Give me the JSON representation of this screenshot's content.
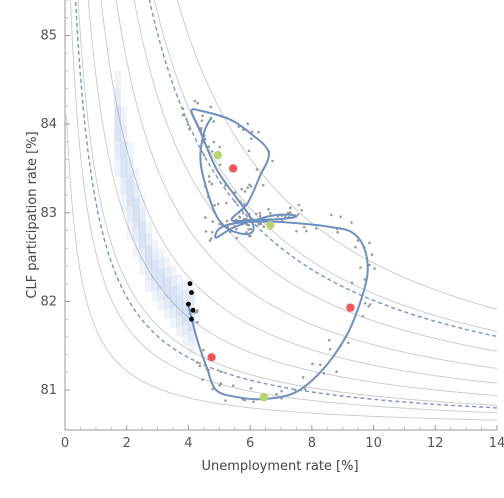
{
  "chart_data": {
    "type": "scatter",
    "title": "",
    "xlabel": "Unemployment rate [%]",
    "ylabel": "CLF participation rate [%]",
    "xlim": [
      0,
      14
    ],
    "ylim": [
      80.55,
      85.4
    ],
    "xticks": [
      0,
      2,
      4,
      6,
      8,
      10,
      12,
      14
    ],
    "yticks": [
      81,
      82,
      83,
      84,
      85
    ],
    "grid": false,
    "background_curves_k": [
      0.4,
      0.7,
      1.0,
      1.4,
      1.9,
      2.5,
      3.2,
      4.0,
      4.9
    ],
    "dashed_curve_k": [
      0.9,
      3.8
    ],
    "dashed_curve_color": "#7a93bf",
    "trajectory": {
      "color": "#6e8fbf",
      "x": [
        4.0,
        4.3,
        4.6,
        4.9,
        5.6,
        6.5,
        7.5,
        8.4,
        9.1,
        9.5,
        9.8,
        9.7,
        9.3,
        8.6,
        7.6,
        6.6,
        5.5,
        5.0,
        4.9,
        5.5,
        6.6,
        7.2,
        7.5,
        7.0,
        6.1,
        5.4,
        5.9,
        6.3,
        6.6,
        6.0,
        5.3,
        4.4,
        4.1,
        4.35,
        4.9,
        5.6,
        6.0,
        6.1,
        5.8,
        5.2,
        4.8,
        4.4,
        4.5,
        4.75
      ],
      "y": [
        81.95,
        81.55,
        81.25,
        81.0,
        80.92,
        80.9,
        80.98,
        81.25,
        81.6,
        81.92,
        82.3,
        82.6,
        82.78,
        82.84,
        82.88,
        82.9,
        82.88,
        82.82,
        82.72,
        82.84,
        82.96,
        82.98,
        82.96,
        82.93,
        82.92,
        82.92,
        83.1,
        83.4,
        83.68,
        83.9,
        84.06,
        84.15,
        84.15,
        83.95,
        83.5,
        83.15,
        82.95,
        82.8,
        82.76,
        82.84,
        83.05,
        83.55,
        83.9,
        84.08
      ]
    },
    "black_points": {
      "x": [
        4.05,
        4.1,
        4.0,
        4.15,
        4.1
      ],
      "y": [
        82.2,
        82.1,
        81.97,
        81.9,
        81.8
      ]
    },
    "red_points": {
      "color": "#f0575a",
      "x": [
        4.75,
        5.45,
        9.25
      ],
      "y": [
        81.37,
        83.5,
        81.93
      ]
    },
    "green_points": {
      "color": "#b5d36e",
      "x": [
        4.95,
        6.65,
        6.45
      ],
      "y": [
        83.65,
        82.86,
        80.92
      ]
    },
    "shaded_band": {
      "color": "#3d6bc4",
      "x": [
        1.6,
        1.8,
        2.0,
        2.2,
        2.4,
        2.6,
        2.8,
        3.0,
        3.2,
        3.4,
        3.6,
        3.8,
        4.0,
        4.2
      ],
      "y_low": [
        83.4,
        83.0,
        82.7,
        82.5,
        82.3,
        82.1,
        82.0,
        81.9,
        81.8,
        81.7,
        81.6,
        81.5,
        81.4,
        81.3
      ],
      "y_high": [
        84.6,
        84.2,
        83.8,
        83.5,
        83.2,
        82.9,
        82.7,
        82.6,
        82.5,
        82.4,
        82.3,
        82.25,
        82.2,
        82.2
      ]
    }
  }
}
